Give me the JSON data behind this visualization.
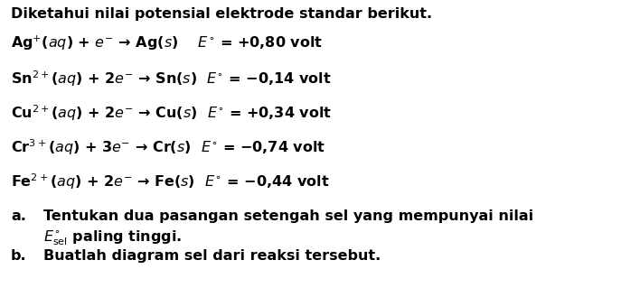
{
  "title": "Diketahui nilai potensial elektrode standar berikut.",
  "reactions": [
    {
      "text": "Ag$^{+}$($aq$) + $e^{-}$ → Ag($s$)    $E^{\\circ}$ = +0,80 volt"
    },
    {
      "text": "Sn$^{2+}$($aq$) + 2$e^{-}$ → Sn($s$)  $E^{\\circ}$ = −0,14 volt"
    },
    {
      "text": "Cu$^{2+}$($aq$) + 2$e^{-}$ → Cu($s$)  $E^{\\circ}$ = +0,34 volt"
    },
    {
      "text": "Cr$^{3+}$($aq$) + 3$e^{-}$ → Cr($s$)  $E^{\\circ}$ = −0,74 volt"
    },
    {
      "text": "Fe$^{2+}$($aq$) + 2$e^{-}$ → Fe($s$)  $E^{\\circ}$ = −0,44 volt"
    }
  ],
  "part_a_label": "a.",
  "part_a_line1": "Tentukan dua pasangan setengah sel yang mempunyai nilai",
  "part_a_line2_pre": "$E^{\\circ}_{\\mathrm{sel}}$ paling tinggi.",
  "part_b_label": "b.",
  "part_b_text": "Buatlah diagram sel dari reaksi tersebut.",
  "bg_color": "#ffffff",
  "text_color": "#000000",
  "font_size": 11.5,
  "fig_width": 7.08,
  "fig_height": 3.19,
  "dpi": 100
}
